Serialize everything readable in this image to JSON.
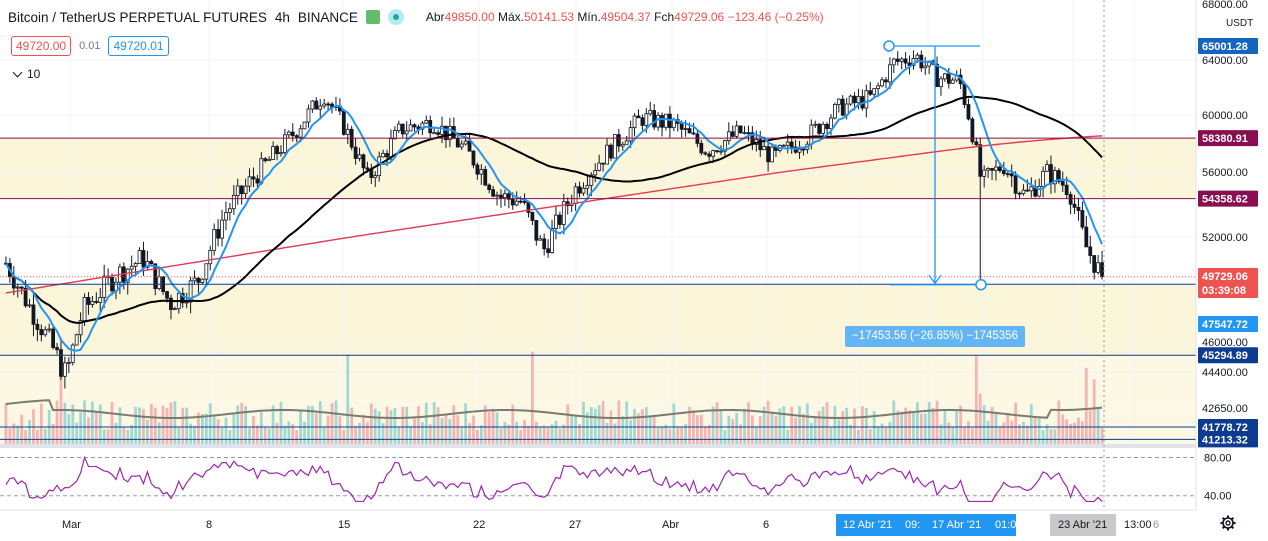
{
  "header": {
    "symbol": "Bitcoin / TetherUS PERPETUAL FUTURES",
    "interval": "4h",
    "exchange": "BINANCE",
    "open_label": "Abr",
    "open": "49850.00",
    "high_label": "Máx.",
    "high": "50141.53",
    "low_label": "Mín.",
    "low": "49504.37",
    "close_label": "Fch",
    "close": "49729.06",
    "change": "−123.46 (−0.25%)"
  },
  "trade": {
    "sell": "49720.00",
    "spread": "0.01",
    "buy": "49720.01"
  },
  "indicators_toggle": "10",
  "measure_label": "−17453.56 (−26.85%) −1745356",
  "currency_label": "USDT",
  "colors": {
    "up": "#26a69a",
    "down": "#ef5350",
    "ema_fast": "#2196f3",
    "sma_slow": "#000000",
    "ma_long": "#e53955",
    "rsi": "#9c27b0",
    "hline_maroon": "#880e4f",
    "hline_navy": "#0d3b8f",
    "zone_fill": "#fbf6d9"
  },
  "chart_data": {
    "type": "candlestick",
    "price_axis_ticks": [
      "68000.00",
      "64000.00",
      "60000.00",
      "56000.00",
      "52000.00",
      "46000.00",
      "44400.00",
      "42650.00"
    ],
    "price_axis_ylim": [
      41000,
      68000
    ],
    "rsi_axis_ticks": [
      "80.00",
      "40.00"
    ],
    "rsi_ylim": [
      25,
      90
    ],
    "time_axis_ticks": [
      "Mar",
      "8",
      "15",
      "22",
      "27",
      "Abr",
      "6",
      "12 Abr '21",
      "09:",
      "17 Abr '21",
      "01:00",
      "23 Abr '21",
      "13:00",
      "6"
    ],
    "horizontal_lines": [
      {
        "value": 58380.91,
        "label": "58380.91",
        "color": "#880e4f"
      },
      {
        "value": 54358.62,
        "label": "54358.62",
        "color": "#880e4f"
      },
      {
        "value": 49300.83,
        "label": "49300.83",
        "color": "#0d3b8f"
      },
      {
        "value": 45294.89,
        "label": "45294.89",
        "color": "#0d3b8f"
      },
      {
        "value": 41778.72,
        "label": "41778.72",
        "color": "#0d3b8f"
      },
      {
        "value": 41213.32,
        "label": "41213.32",
        "color": "#0d3b8f"
      }
    ],
    "price_labels": [
      {
        "value": 65001.28,
        "label": "65001.28",
        "color": "#1565c0"
      },
      {
        "value": 49729.06,
        "label": "49729.06",
        "color": "#ef5350"
      },
      {
        "value": 48850,
        "label": "03:39:08",
        "color": "#ef5350"
      },
      {
        "value": 47547.72,
        "label": "47547.72",
        "color": "#2196f3"
      }
    ],
    "key_closes": [
      {
        "pos": 0.0,
        "close": 50500
      },
      {
        "pos": 0.02,
        "close": 48200
      },
      {
        "pos": 0.04,
        "close": 46000
      },
      {
        "pos": 0.055,
        "close": 44200
      },
      {
        "pos": 0.07,
        "close": 47800
      },
      {
        "pos": 0.1,
        "close": 49800
      },
      {
        "pos": 0.125,
        "close": 50800
      },
      {
        "pos": 0.15,
        "close": 48200
      },
      {
        "pos": 0.175,
        "close": 49500
      },
      {
        "pos": 0.2,
        "close": 53500
      },
      {
        "pos": 0.23,
        "close": 56000
      },
      {
        "pos": 0.26,
        "close": 58500
      },
      {
        "pos": 0.29,
        "close": 61500
      },
      {
        "pos": 0.31,
        "close": 59000
      },
      {
        "pos": 0.33,
        "close": 55500
      },
      {
        "pos": 0.36,
        "close": 59000
      },
      {
        "pos": 0.39,
        "close": 59500
      },
      {
        "pos": 0.42,
        "close": 57500
      },
      {
        "pos": 0.45,
        "close": 54500
      },
      {
        "pos": 0.47,
        "close": 54200
      },
      {
        "pos": 0.49,
        "close": 51200
      },
      {
        "pos": 0.52,
        "close": 55000
      },
      {
        "pos": 0.55,
        "close": 57500
      },
      {
        "pos": 0.58,
        "close": 59800
      },
      {
        "pos": 0.61,
        "close": 59300
      },
      {
        "pos": 0.64,
        "close": 57500
      },
      {
        "pos": 0.67,
        "close": 58800
      },
      {
        "pos": 0.7,
        "close": 57000
      },
      {
        "pos": 0.73,
        "close": 58400
      },
      {
        "pos": 0.76,
        "close": 60500
      },
      {
        "pos": 0.79,
        "close": 61300
      },
      {
        "pos": 0.81,
        "close": 63800
      },
      {
        "pos": 0.83,
        "close": 64300
      },
      {
        "pos": 0.85,
        "close": 62700
      },
      {
        "pos": 0.87,
        "close": 62500
      },
      {
        "pos": 0.88,
        "close": 59500
      },
      {
        "pos": 0.89,
        "close": 55300
      },
      {
        "pos": 0.91,
        "close": 56500
      },
      {
        "pos": 0.93,
        "close": 54500
      },
      {
        "pos": 0.95,
        "close": 56000
      },
      {
        "pos": 0.97,
        "close": 55000
      },
      {
        "pos": 0.985,
        "close": 51500
      },
      {
        "pos": 1.0,
        "close": 49729
      }
    ]
  }
}
